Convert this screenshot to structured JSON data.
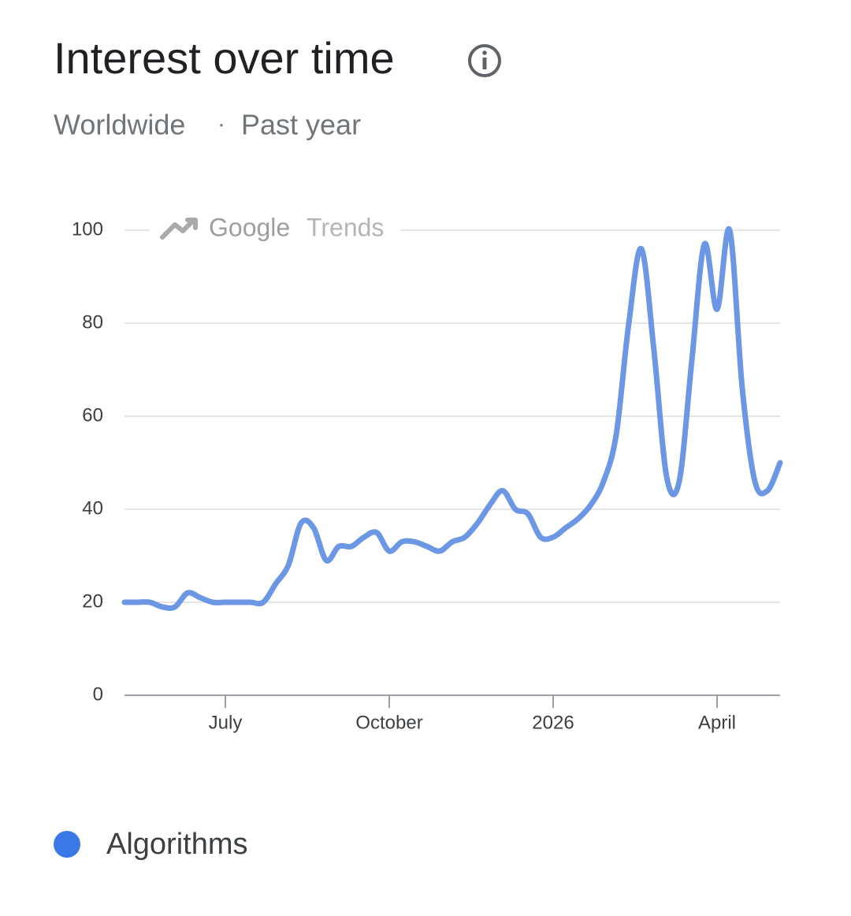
{
  "chart_data": {
    "type": "line",
    "title": "Interest over time",
    "subtitle": [
      "Worldwide",
      "·",
      "Past year"
    ],
    "watermark": {
      "brand": "Google",
      "product": "Trends"
    },
    "categories": [
      null,
      null,
      null,
      null,
      null,
      null,
      null,
      null,
      "July",
      null,
      null,
      null,
      null,
      null,
      null,
      null,
      null,
      null,
      null,
      null,
      null,
      "October",
      null,
      null,
      null,
      null,
      null,
      null,
      null,
      null,
      null,
      null,
      null,
      null,
      "2026",
      null,
      null,
      null,
      null,
      null,
      null,
      null,
      null,
      null,
      null,
      null,
      null,
      "April",
      null,
      null,
      null,
      null,
      null
    ],
    "series": [
      {
        "name": "Algorithms",
        "color": "#6b97e4",
        "legend_color": "#3b78e7",
        "values": [
          20,
          20,
          20,
          19,
          19,
          22,
          21,
          20,
          20,
          20,
          20,
          20,
          24,
          28,
          37,
          36,
          29,
          32,
          32,
          34,
          35,
          31,
          33,
          33,
          32,
          31,
          33,
          34,
          37,
          41,
          44,
          40,
          39,
          34,
          34,
          36,
          38,
          41,
          46,
          56,
          80,
          96,
          74,
          47,
          46,
          72,
          97,
          83,
          100,
          66,
          46,
          44,
          50
        ]
      }
    ],
    "ylim": [
      0,
      100
    ],
    "yticks": [
      0,
      20,
      40,
      60,
      80,
      100
    ],
    "grid": true
  }
}
